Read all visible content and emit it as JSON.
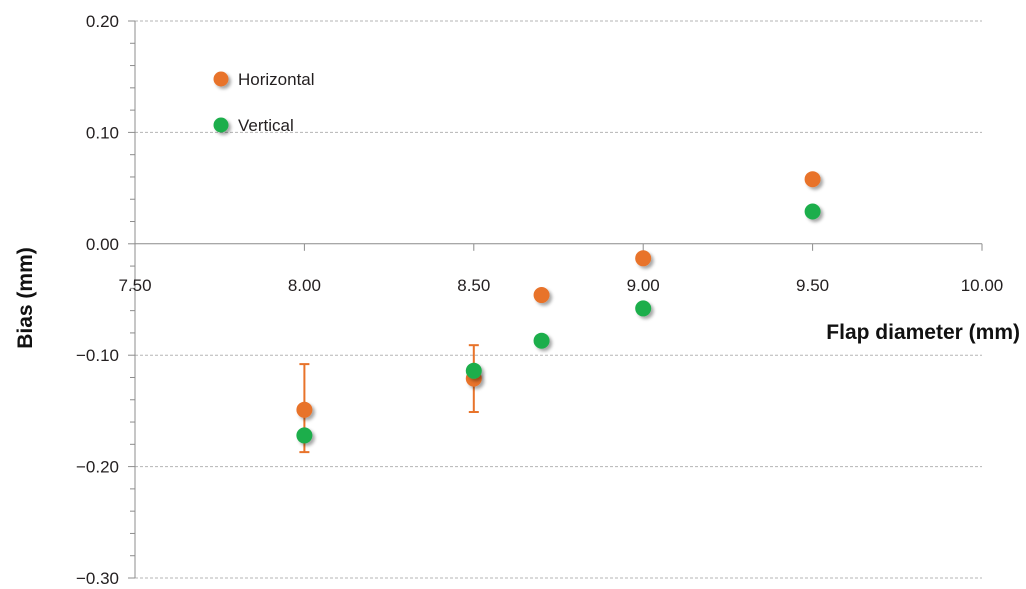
{
  "chart_data": {
    "type": "scatter",
    "title": "",
    "xlabel": "Flap diameter (mm)",
    "ylabel": "Bias (mm)",
    "xlim": [
      7.5,
      10.0
    ],
    "ylim": [
      -0.3,
      0.2
    ],
    "x_ticks": [
      {
        "value": 7.5,
        "label": "7.50"
      },
      {
        "value": 8.0,
        "label": "8.00"
      },
      {
        "value": 8.5,
        "label": "8.50"
      },
      {
        "value": 9.0,
        "label": "9.00"
      },
      {
        "value": 9.5,
        "label": "9.50"
      },
      {
        "value": 10.0,
        "label": "10.00"
      }
    ],
    "y_ticks": [
      {
        "value": 0.2,
        "label": "0.20"
      },
      {
        "value": 0.1,
        "label": "0.10"
      },
      {
        "value": 0.0,
        "label": "0.00"
      },
      {
        "value": -0.1,
        "label": "−0.10"
      },
      {
        "value": -0.2,
        "label": "−0.20"
      },
      {
        "value": -0.3,
        "label": "−0.30"
      }
    ],
    "y_minor_step": 0.02,
    "grid": "horizontal dashed",
    "legend_position": "top-left",
    "series": [
      {
        "name": "Horizontal",
        "color": "#e8732a",
        "points": [
          {
            "x": 8.0,
            "y": -0.149,
            "err_low": -0.187,
            "err_high": -0.108
          },
          {
            "x": 8.5,
            "y": -0.121,
            "err_low": -0.151,
            "err_high": -0.091
          },
          {
            "x": 8.7,
            "y": -0.046
          },
          {
            "x": 9.0,
            "y": -0.013
          },
          {
            "x": 9.5,
            "y": 0.058
          }
        ]
      },
      {
        "name": "Vertical",
        "color": "#1fae4b",
        "points": [
          {
            "x": 8.0,
            "y": -0.172
          },
          {
            "x": 8.5,
            "y": -0.114
          },
          {
            "x": 8.7,
            "y": -0.087
          },
          {
            "x": 9.0,
            "y": -0.058
          },
          {
            "x": 9.5,
            "y": 0.029
          }
        ]
      }
    ]
  }
}
